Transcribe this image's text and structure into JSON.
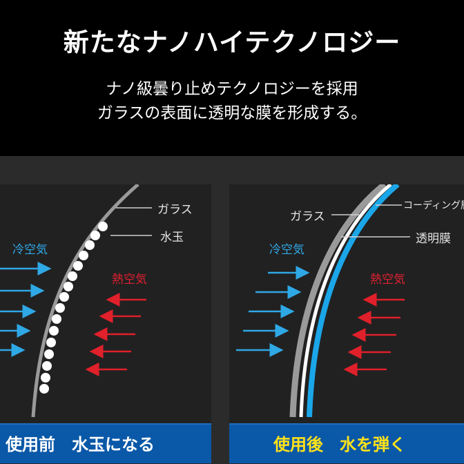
{
  "header": {
    "title": "新たなナノハイテクノロジー",
    "subtitle_line1": "ナノ級曇り止めテクノロジーを採用",
    "subtitle_line2": "ガラスの表面に透明な膜を形成する。"
  },
  "before": {
    "glass_label": "ガラス",
    "droplet_label": "水玉",
    "cold_air_label": "冷空気",
    "hot_air_label": "熱空気",
    "banner": "使用前　水玉になる"
  },
  "after": {
    "glass_label": "ガラス",
    "coating_label": "コーディング層",
    "film_label": "透明膜",
    "cold_air_label": "冷空気",
    "hot_air_label": "熱空気",
    "banner": "使用後　水を弾く"
  },
  "colors": {
    "cold_arrow": "#2fa8e6",
    "hot_arrow": "#e0202a",
    "banner_bg": "#0a58a8",
    "banner_after_text": "#ffe21a",
    "coating_blue": "#1aa6e8",
    "glass_grey": "#9a9a9a"
  }
}
